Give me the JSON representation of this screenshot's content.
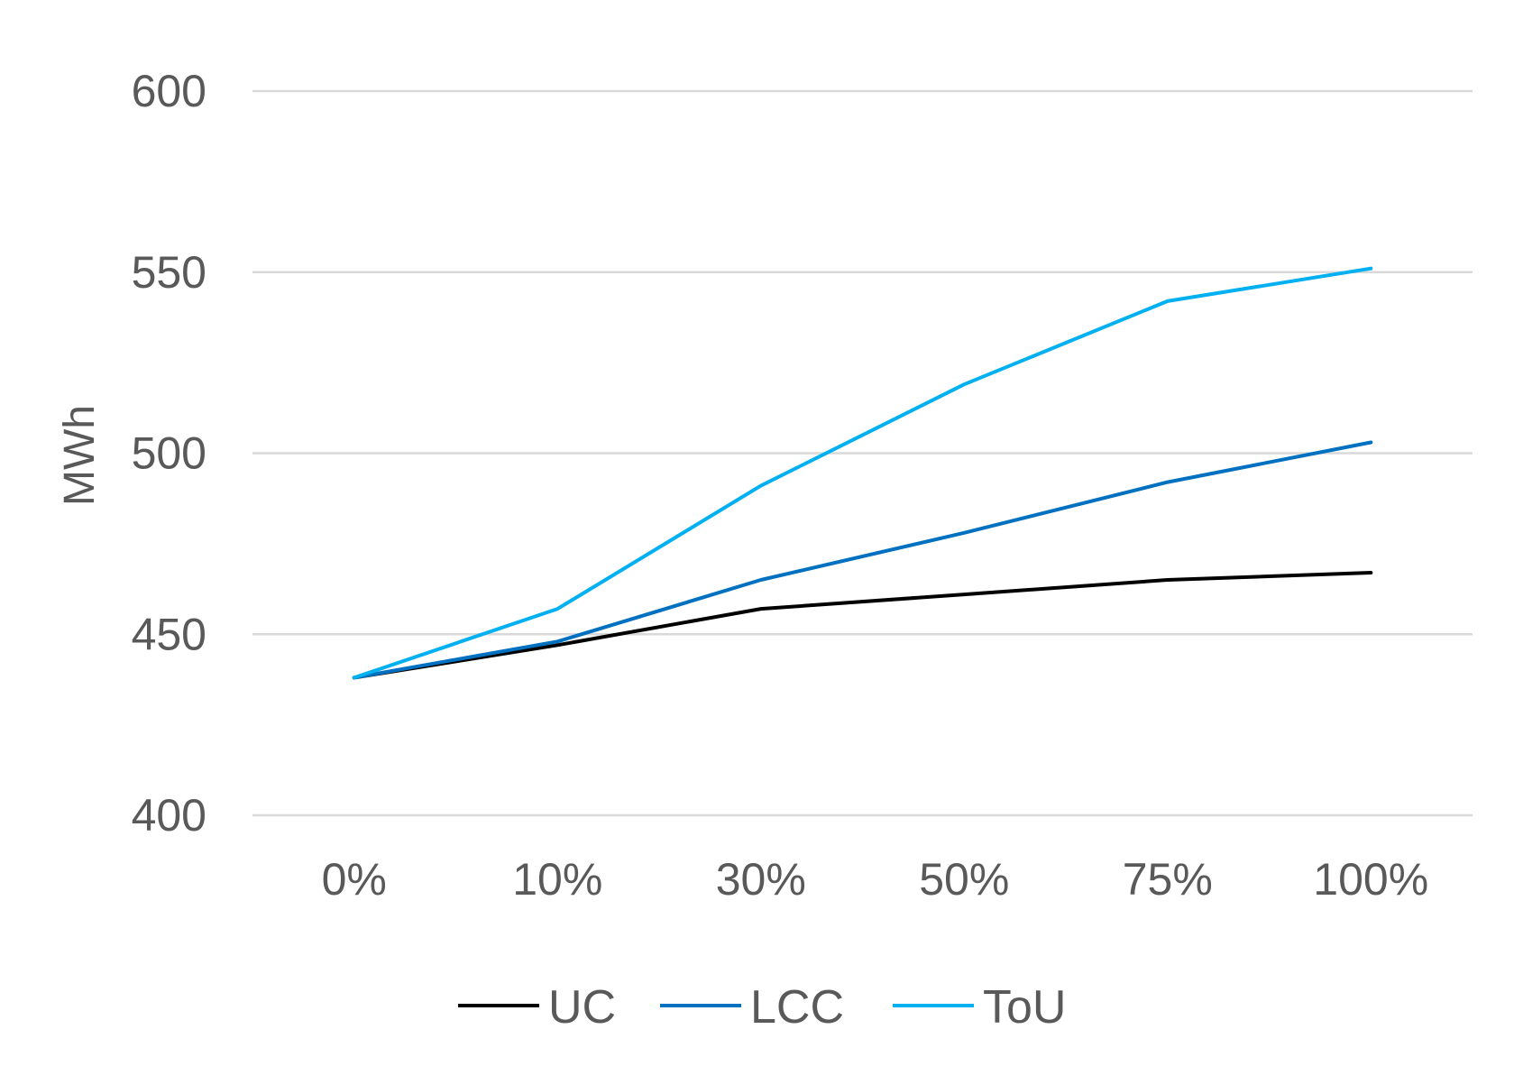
{
  "chart_data": {
    "type": "line",
    "title": "",
    "xlabel": "",
    "ylabel": "MWh",
    "categories": [
      "0%",
      "10%",
      "30%",
      "50%",
      "75%",
      "100%"
    ],
    "ylim": [
      400,
      600
    ],
    "yticks": [
      "400",
      "450",
      "500",
      "550",
      "600"
    ],
    "grid": true,
    "legend_position": "bottom",
    "series": [
      {
        "name": "UC",
        "color": "#000000",
        "values": [
          438,
          447,
          457,
          461,
          465,
          467
        ]
      },
      {
        "name": "LCC",
        "color": "#0070C0",
        "values": [
          438,
          448,
          465,
          478,
          492,
          503
        ]
      },
      {
        "name": "ToU",
        "color": "#00B0F0",
        "values": [
          438,
          457,
          491,
          519,
          542,
          551
        ]
      }
    ]
  }
}
